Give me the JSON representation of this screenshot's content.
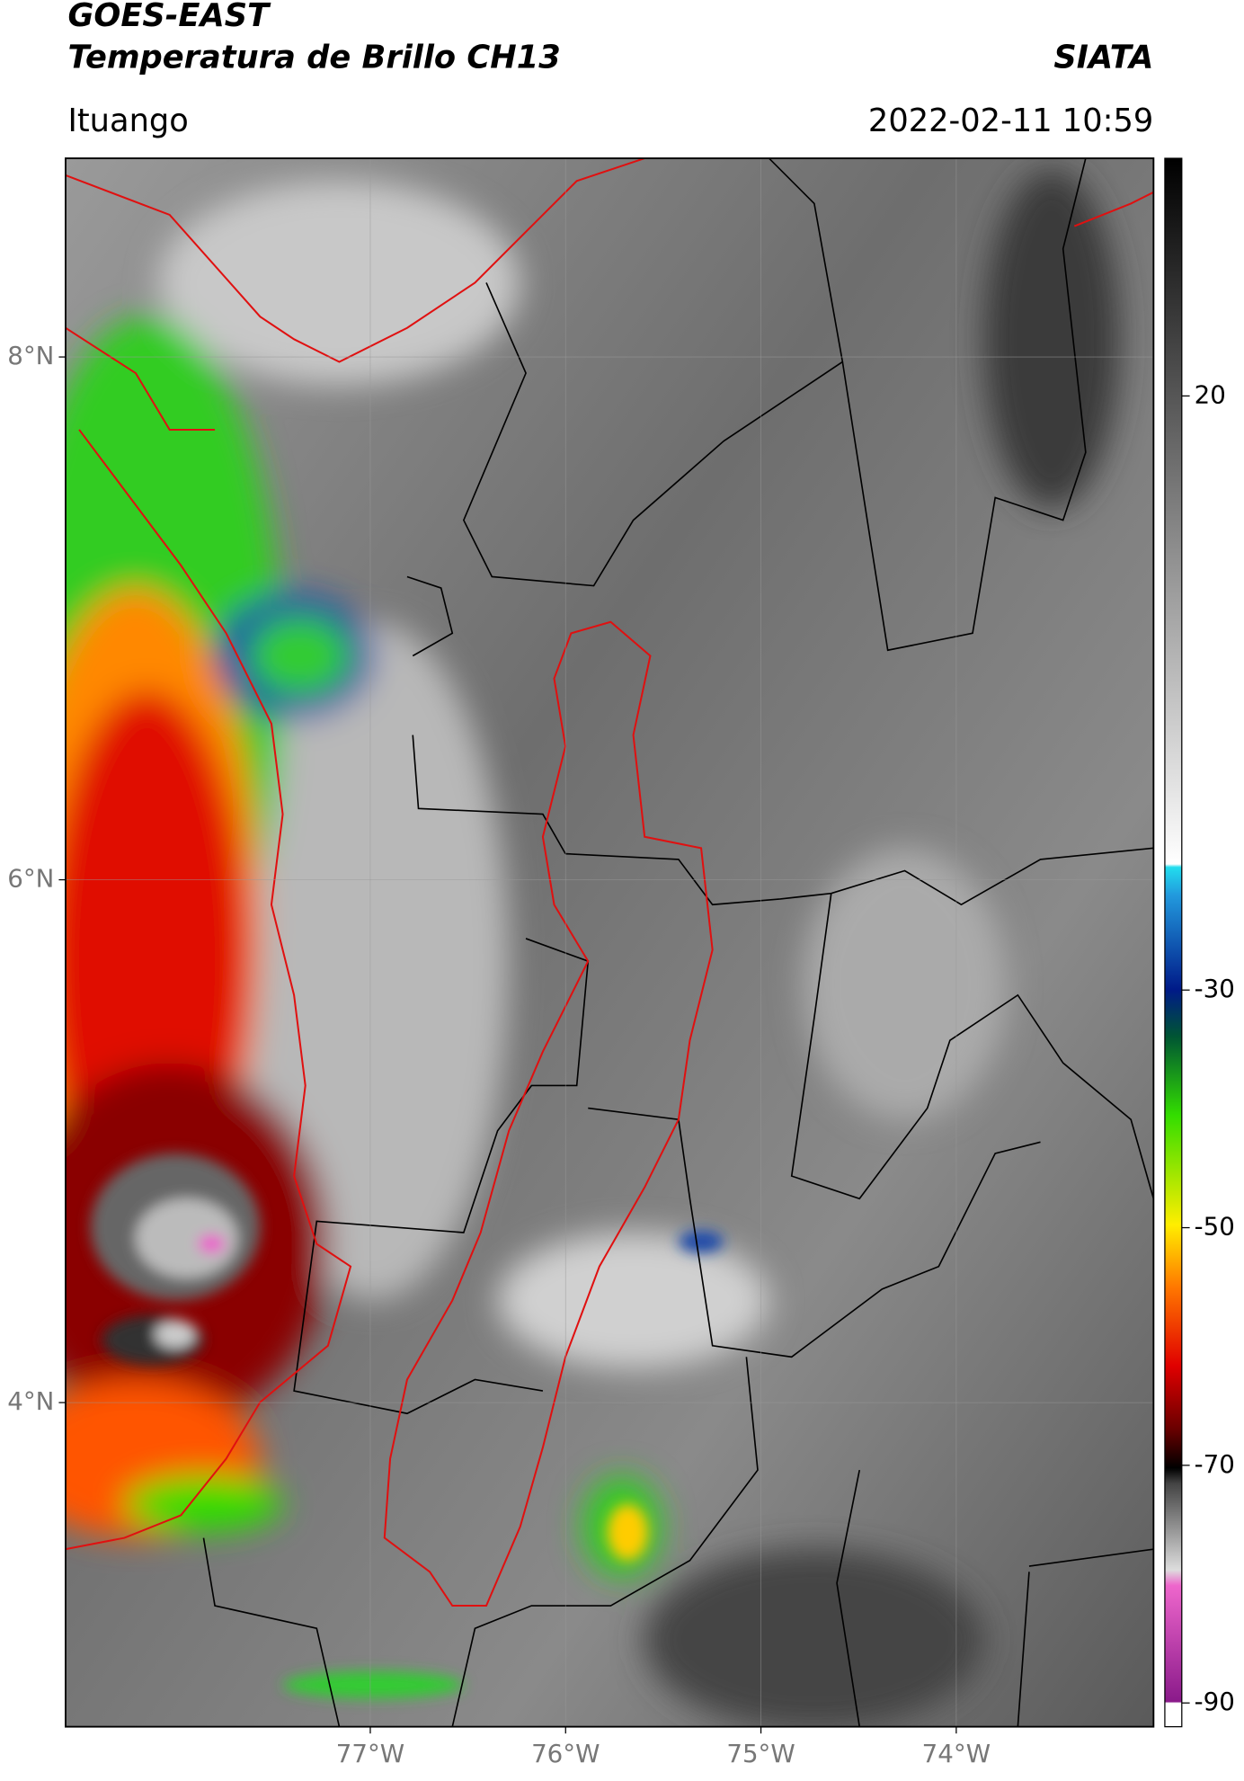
{
  "header": {
    "title": "GOES-EAST",
    "subtitle": "Temperatura de Brillo CH13",
    "source": "SIATA",
    "location": "Ituango",
    "timestamp": "2022-02-11 10:59"
  },
  "map": {
    "xlim": [
      -78.56,
      -72.99
    ],
    "ylim": [
      2.76,
      8.76
    ],
    "xticks": [
      {
        "value": -77,
        "label": "77°W"
      },
      {
        "value": -76,
        "label": "76°W"
      },
      {
        "value": -75,
        "label": "75°W"
      },
      {
        "value": -74,
        "label": "74°W"
      }
    ],
    "yticks": [
      {
        "value": 8,
        "label": "8°N"
      },
      {
        "value": 6,
        "label": "6°N"
      },
      {
        "value": 4,
        "label": "4°N"
      }
    ],
    "grid": true
  },
  "colorbar": {
    "ylim": [
      -92,
      40
    ],
    "ticks": [
      20,
      -30,
      -50,
      -70,
      -90
    ]
  }
}
